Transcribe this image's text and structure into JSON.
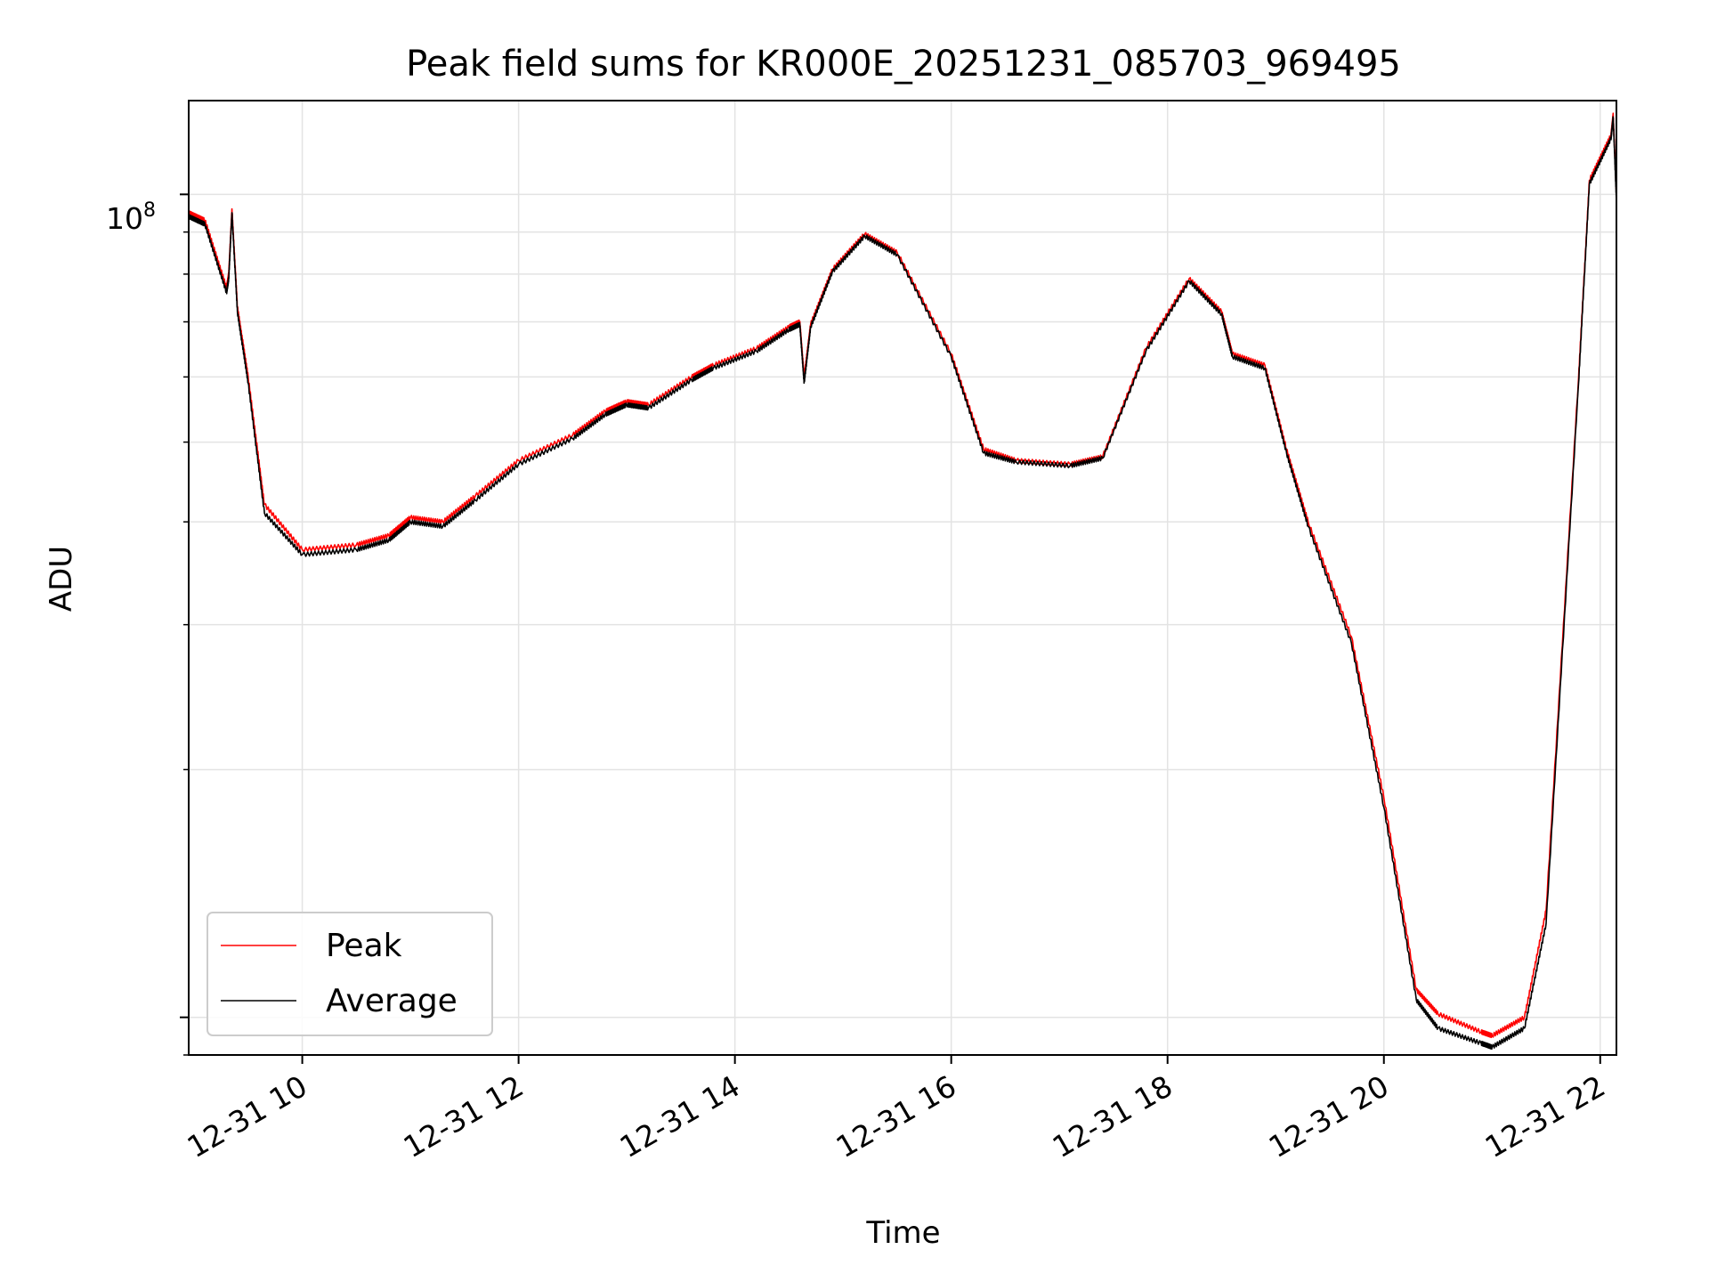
{
  "chart_data": {
    "type": "line",
    "title": "Peak field sums for KR000E_20251231_085703_969495",
    "xlabel": "Time",
    "ylabel": "ADU",
    "y_scale": "log",
    "y_tick_label": {
      "base": "10",
      "exp": "8"
    },
    "ylim": [
      9000000,
      130000000
    ],
    "xlim": [
      8.95,
      22.15
    ],
    "x_tick_values": [
      10,
      12,
      14,
      16,
      18,
      20,
      22
    ],
    "x_tick_labels": [
      "12-31 10",
      "12-31 12",
      "12-31 14",
      "12-31 16",
      "12-31 18",
      "12-31 20",
      "12-31 22"
    ],
    "grid": true,
    "legend_position": "lower-left",
    "series": [
      {
        "name": "Peak",
        "color": "#ff0000",
        "x": [
          8.95,
          9.1,
          9.3,
          9.32,
          9.35,
          9.4,
          9.5,
          9.65,
          10.0,
          10.5,
          10.8,
          11.0,
          11.3,
          11.6,
          12.0,
          12.5,
          12.8,
          13.0,
          13.2,
          13.6,
          13.8,
          14.2,
          14.5,
          14.6,
          14.64,
          14.7,
          14.9,
          15.2,
          15.5,
          16.0,
          16.3,
          16.6,
          17.1,
          17.4,
          17.8,
          18.2,
          18.5,
          18.6,
          18.9,
          19.1,
          19.3,
          19.7,
          20.0,
          20.3,
          20.5,
          20.9,
          21.0,
          21.3,
          21.5,
          21.8,
          21.9,
          22.1,
          22.12,
          22.15
        ],
        "y": [
          95000000,
          93000000,
          77000000,
          80000000,
          96000000,
          73000000,
          60000000,
          42000000,
          37000000,
          37500000,
          38500000,
          40500000,
          40000000,
          43000000,
          47500000,
          51000000,
          54500000,
          56000000,
          55500000,
          60000000,
          62000000,
          65000000,
          69000000,
          70000000,
          60000000,
          69500000,
          81000000,
          89500000,
          85000000,
          64000000,
          49000000,
          47500000,
          47000000,
          48000000,
          65000000,
          79000000,
          72000000,
          64000000,
          62000000,
          49000000,
          40000000,
          29000000,
          18500000,
          10800000,
          10100000,
          9600000,
          9500000,
          10000000,
          13500000,
          60000000,
          104000000,
          118000000,
          125000000,
          100000000
        ]
      },
      {
        "name": "Average",
        "color": "#000000",
        "x": [
          8.95,
          9.1,
          9.3,
          9.32,
          9.35,
          9.4,
          9.5,
          9.65,
          10.0,
          10.5,
          10.8,
          11.0,
          11.3,
          11.6,
          12.0,
          12.5,
          12.8,
          13.0,
          13.2,
          13.6,
          13.8,
          14.2,
          14.5,
          14.6,
          14.64,
          14.7,
          14.9,
          15.2,
          15.5,
          16.0,
          16.3,
          16.6,
          17.1,
          17.4,
          17.8,
          18.2,
          18.5,
          18.6,
          18.9,
          19.1,
          19.3,
          19.7,
          20.0,
          20.3,
          20.5,
          20.9,
          21.0,
          21.3,
          21.5,
          21.8,
          21.9,
          22.1,
          22.12,
          22.15
        ],
        "y": [
          94000000,
          92000000,
          76000000,
          79000000,
          95000000,
          72000000,
          59000000,
          41000000,
          36500000,
          37000000,
          38000000,
          40000000,
          39500000,
          42500000,
          47000000,
          50500000,
          54000000,
          55500000,
          55000000,
          59500000,
          61500000,
          64500000,
          68500000,
          69500000,
          59000000,
          69000000,
          80500000,
          89000000,
          84500000,
          63500000,
          48500000,
          47300000,
          46800000,
          47800000,
          64500000,
          78500000,
          71500000,
          63500000,
          61500000,
          48500000,
          39500000,
          28500000,
          18000000,
          10500000,
          9700000,
          9300000,
          9200000,
          9700000,
          13000000,
          59000000,
          103000000,
          117000000,
          124000000,
          98000000
        ]
      }
    ]
  }
}
